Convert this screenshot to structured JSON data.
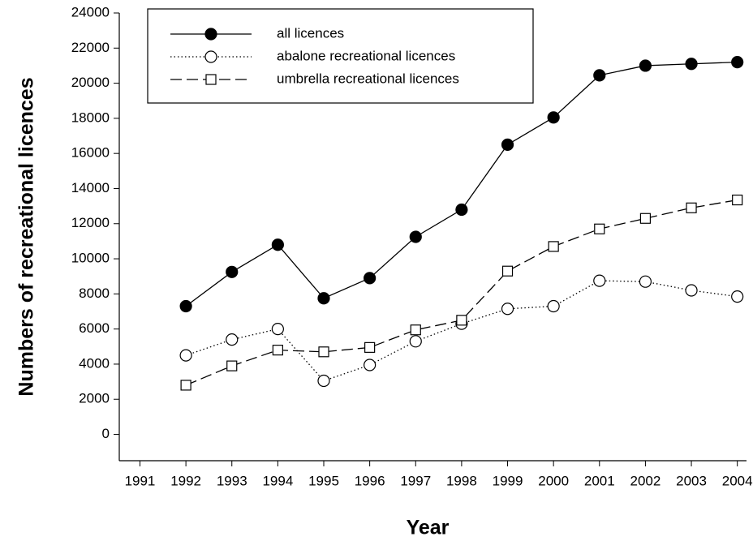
{
  "chart_data": {
    "type": "line",
    "x_label": "Year",
    "y_label": "Numbers of recreational licences",
    "x": [
      1992,
      1993,
      1994,
      1995,
      1996,
      1997,
      1998,
      1999,
      2000,
      2001,
      2002,
      2003,
      2004
    ],
    "series": [
      {
        "name": "all licences",
        "color": "#000000",
        "marker": "filled-circle",
        "linestyle": "solid",
        "values": [
          7300,
          9250,
          10800,
          7750,
          8900,
          11250,
          12800,
          16500,
          18050,
          20450,
          21000,
          21100,
          21200
        ]
      },
      {
        "name": "abalone recreational licences",
        "color": "#000000",
        "marker": "open-circle",
        "linestyle": "dotted",
        "values": [
          4500,
          5400,
          6000,
          3050,
          3950,
          5300,
          6300,
          7150,
          7300,
          8750,
          8700,
          8200,
          7850
        ]
      },
      {
        "name": "umbrella recreational licences",
        "color": "#000000",
        "marker": "open-square",
        "linestyle": "dashed",
        "values": [
          2800,
          3900,
          4800,
          4700,
          4950,
          5950,
          6500,
          9300,
          10700,
          11700,
          12300,
          12900,
          13350
        ]
      }
    ],
    "xlim": [
      1990.55,
      2004.2
    ],
    "xticks": [
      1991,
      1992,
      1993,
      1994,
      1995,
      1996,
      1997,
      1998,
      1999,
      2000,
      2001,
      2002,
      2003,
      2004
    ],
    "ylim": [
      -1500,
      24000
    ],
    "yticks": [
      0,
      2000,
      4000,
      6000,
      8000,
      10000,
      12000,
      14000,
      16000,
      18000,
      20000,
      22000,
      24000
    ],
    "grid": false,
    "legend": "upper-left"
  }
}
